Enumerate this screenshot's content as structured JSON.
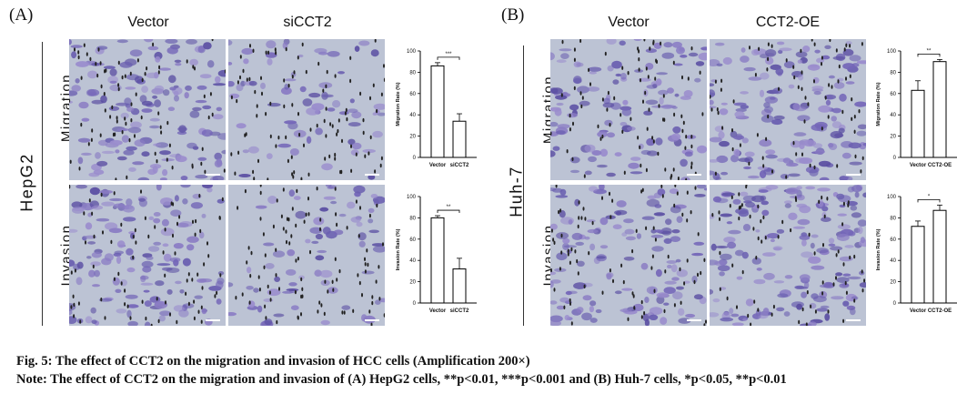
{
  "panels": [
    {
      "letter": "(A)",
      "cell_line": "HepG2",
      "columns": [
        "Vector",
        "siCCT2"
      ],
      "rows": [
        "Migration",
        "Invasion"
      ],
      "charts": [
        {
          "ylabel": "Migration Rate (%)",
          "sig": "***"
        },
        {
          "ylabel": "Invasion Rate (%)",
          "sig": "**"
        }
      ]
    },
    {
      "letter": "(B)",
      "cell_line": "Huh-7",
      "columns": [
        "Vector",
        "CCT2-OE"
      ],
      "rows": [
        "Migration",
        "Invasion"
      ],
      "charts": [
        {
          "ylabel": "Migration Rate (%)",
          "sig": "**"
        },
        {
          "ylabel": "Invasion Rate (%)",
          "sig": "*"
        }
      ]
    }
  ],
  "chart_data": [
    {
      "type": "bar",
      "panel": "A",
      "categories": [
        "Vector",
        "siCCT2"
      ],
      "values": [
        86,
        34
      ],
      "errors": [
        3,
        7
      ],
      "ylabel": "Migration Rate (%)",
      "ylim": [
        0,
        100
      ],
      "yticks": [
        "0",
        "20",
        "40",
        "60",
        "80",
        "100"
      ],
      "significance": "***"
    },
    {
      "type": "bar",
      "panel": "A",
      "categories": [
        "Vector",
        "siCCT2"
      ],
      "values": [
        80,
        32
      ],
      "errors": [
        2,
        10
      ],
      "ylabel": "Invasion Rate (%)",
      "ylim": [
        0,
        100
      ],
      "yticks": [
        "0",
        "20",
        "40",
        "60",
        "80",
        "100"
      ],
      "significance": "**"
    },
    {
      "type": "bar",
      "panel": "B",
      "categories": [
        "Vector",
        "CCT2-OE"
      ],
      "values": [
        63,
        90
      ],
      "errors": [
        9,
        2
      ],
      "ylabel": "Migration Rate (%)",
      "ylim": [
        0,
        100
      ],
      "yticks": [
        "0",
        "20",
        "40",
        "60",
        "80",
        "100"
      ],
      "significance": "**"
    },
    {
      "type": "bar",
      "panel": "B",
      "categories": [
        "Vector",
        "CCT2-OE"
      ],
      "values": [
        72,
        87
      ],
      "errors": [
        5,
        5
      ],
      "ylabel": "Invasion Rate (%)",
      "ylim": [
        0,
        100
      ],
      "yticks": [
        "0",
        "20",
        "40",
        "60",
        "80",
        "100"
      ],
      "significance": "*"
    }
  ],
  "caption": {
    "title": "Fig. 5: The effect of CCT2 on the migration and invasion of HCC cells (Amplification 200×)",
    "note": "Note: The effect of CCT2 on the migration and invasion of (A) HepG2 cells, **p<0.01, ***p<0.001 and (B) Huh-7 cells, *p<0.05, **p<0.01"
  }
}
